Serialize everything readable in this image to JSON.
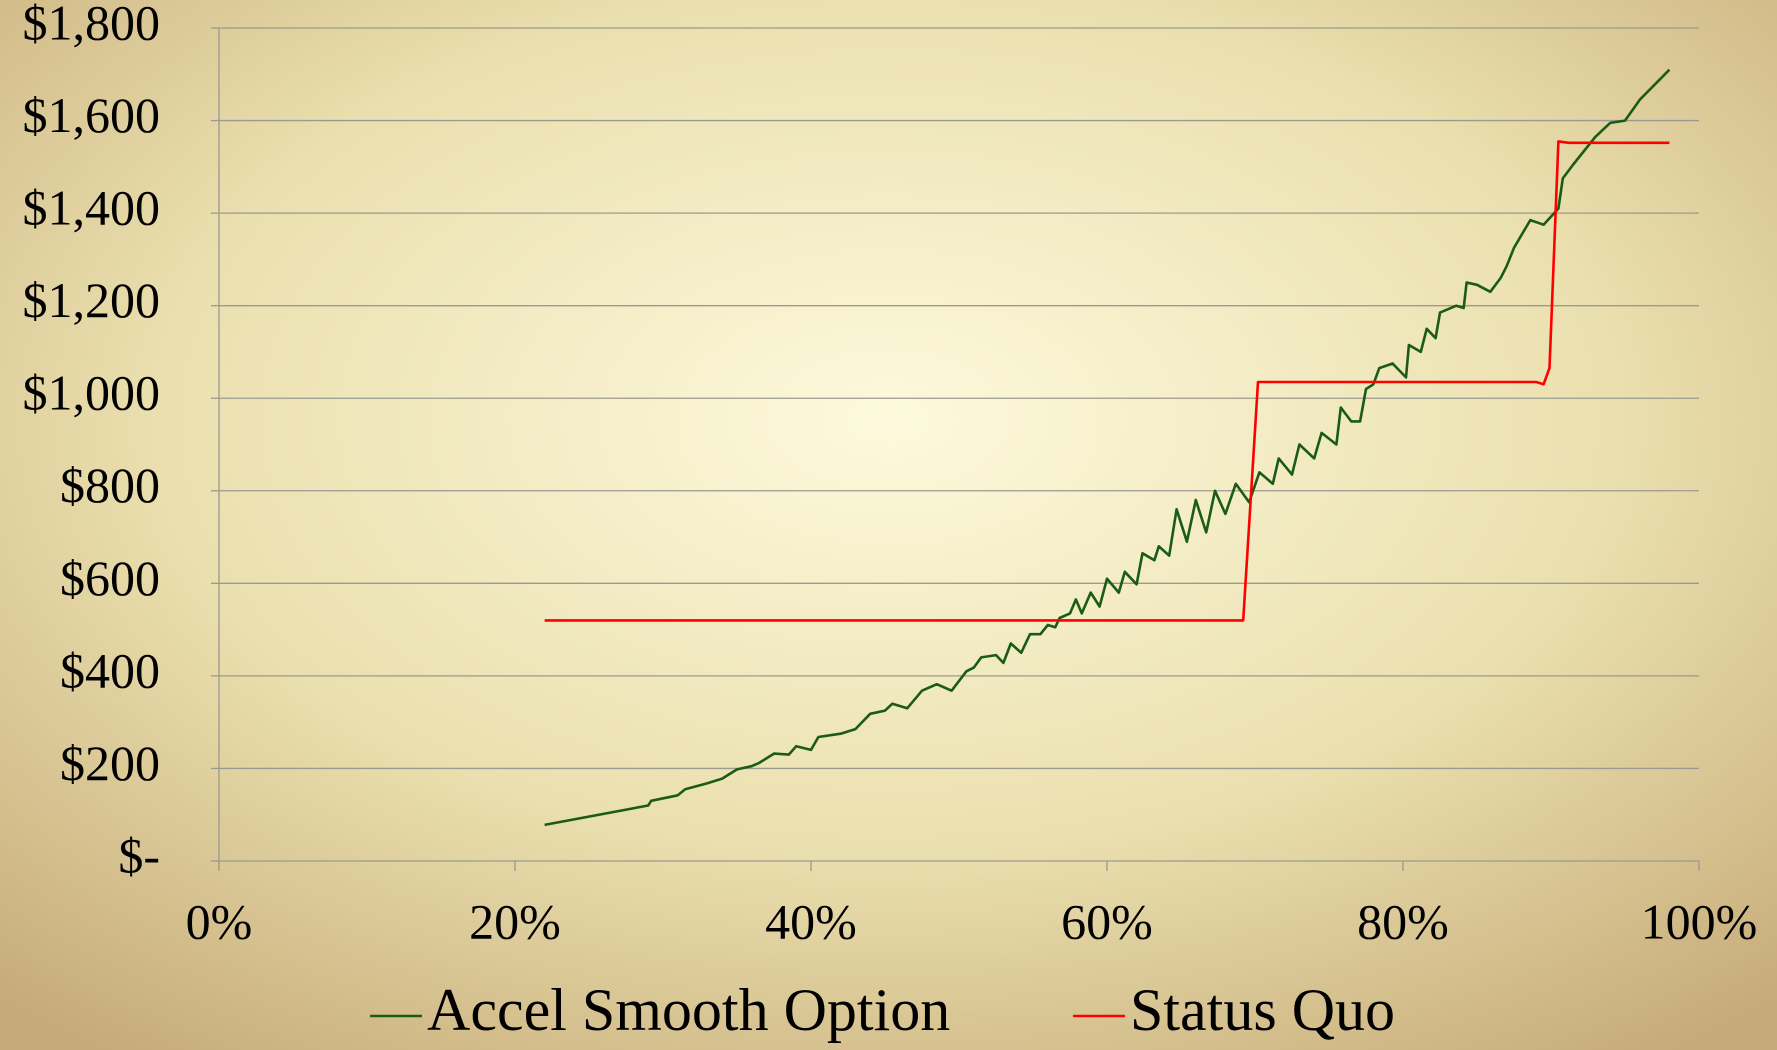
{
  "chart_data": {
    "type": "line",
    "series": [
      {
        "name": "Accel Smooth Option",
        "color": "#1a5c14",
        "x": [
          22,
          29,
          29.2,
          31,
          31.5,
          33,
          34,
          35,
          36,
          36.5,
          37.5,
          38.5,
          39,
          40,
          40.5,
          42,
          43,
          44,
          45,
          45.5,
          46.5,
          47.5,
          48.5,
          49.5,
          50.5,
          51,
          51.5,
          52.5,
          53,
          53.5,
          54.2,
          54.8,
          55.5,
          56,
          56.5,
          56.8,
          57.5,
          57.9,
          58.3,
          58.9,
          59.5,
          60,
          60.8,
          61.2,
          62,
          62.4,
          63.2,
          63.5,
          64.2,
          64.7,
          65.4,
          66,
          66.7,
          67.3,
          68,
          68.7,
          69.6,
          70.3,
          71.2,
          71.6,
          72.5,
          73,
          74,
          74.5,
          75.5,
          75.8,
          76.5,
          77.1,
          77.5,
          78,
          78.4,
          79.3,
          80.2,
          80.4,
          81.2,
          81.6,
          82.2,
          82.5,
          83.6,
          84.1,
          84.3,
          85,
          85.9,
          86.6,
          87,
          87.5,
          88.6,
          89.5,
          90.5,
          90.8,
          91.5,
          93,
          94,
          95,
          96,
          98
        ],
        "values": [
          78,
          120,
          130,
          142,
          155,
          168,
          178,
          198,
          205,
          212,
          232,
          230,
          248,
          240,
          268,
          275,
          285,
          318,
          325,
          340,
          330,
          368,
          382,
          368,
          410,
          418,
          440,
          445,
          428,
          470,
          450,
          490,
          490,
          510,
          505,
          525,
          535,
          565,
          535,
          580,
          550,
          610,
          580,
          625,
          598,
          665,
          650,
          680,
          660,
          760,
          690,
          780,
          710,
          800,
          750,
          815,
          775,
          840,
          815,
          870,
          835,
          900,
          870,
          925,
          900,
          980,
          950,
          950,
          1020,
          1030,
          1065,
          1075,
          1045,
          1115,
          1100,
          1150,
          1130,
          1185,
          1200,
          1195,
          1250,
          1245,
          1230,
          1260,
          1285,
          1325,
          1385,
          1375,
          1410,
          1475,
          1505,
          1565,
          1595,
          1600,
          1645,
          1710
        ]
      },
      {
        "name": "Status Quo",
        "color": "#ff0000",
        "x": [
          22,
          69.2,
          70.2,
          77,
          89,
          89.5,
          89.9,
          90.5,
          91.2,
          98
        ],
        "values": [
          520,
          520,
          1035,
          1035,
          1035,
          1030,
          1065,
          1555,
          1552,
          1552
        ]
      }
    ],
    "xlim": [
      0,
      100
    ],
    "xticks": [
      {
        "value": 0,
        "label": "0%"
      },
      {
        "value": 20,
        "label": "20%"
      },
      {
        "value": 40,
        "label": "40%"
      },
      {
        "value": 60,
        "label": "60%"
      },
      {
        "value": 80,
        "label": "80%"
      },
      {
        "value": 100,
        "label": "100%"
      }
    ],
    "ylim": [
      0,
      1800
    ],
    "yticks": [
      {
        "value": 0,
        "label": "$-"
      },
      {
        "value": 200,
        "label": "$200"
      },
      {
        "value": 400,
        "label": "$400"
      },
      {
        "value": 600,
        "label": "$600"
      },
      {
        "value": 800,
        "label": "$800"
      },
      {
        "value": 1000,
        "label": "$1,000"
      },
      {
        "value": 1200,
        "label": "$1,200"
      },
      {
        "value": 1400,
        "label": "$1,400"
      },
      {
        "value": 1600,
        "label": "$1,600"
      },
      {
        "value": 1800,
        "label": "$1,800"
      }
    ],
    "grid": true,
    "legend": "bottom"
  }
}
